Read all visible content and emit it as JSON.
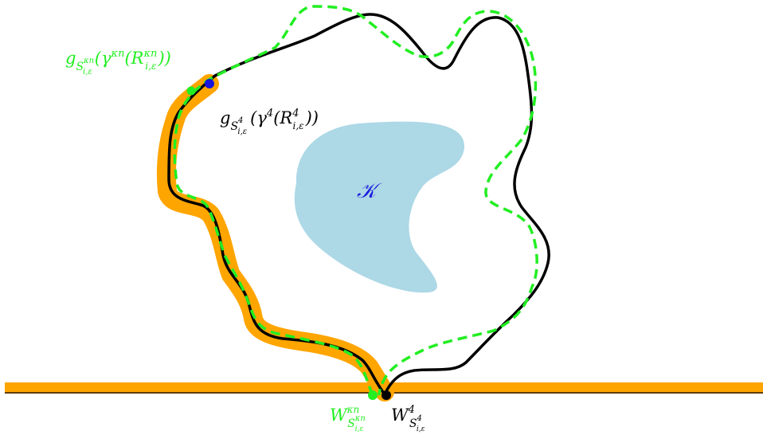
{
  "colors": {
    "background": "#ffffff",
    "orange_band": "#FFA500",
    "black_curve": "#000000",
    "green_dashed": "#22EE22",
    "compact_set_fill": "#ADD8E6",
    "compact_set_label": "#1A1ADD",
    "blue_point": "#1515DD"
  },
  "labels": {
    "K": "𝒦",
    "green_top_label": {
      "base": "g",
      "sub": "S",
      "subsup": "κn",
      "subsub": "i,ε",
      "expr_open": "(γ",
      "expr_sup": "κn",
      "expr_mid": "(R",
      "expr_R_sup": "κn",
      "expr_R_sub": "i,ε",
      "expr_close": "))"
    },
    "black_top_label": {
      "base": "g",
      "sub": "S",
      "subsup": "4",
      "subsub": "i,ε",
      "expr_open": "(γ",
      "expr_sup": "4",
      "expr_mid": "(R",
      "expr_R_sup": "4",
      "expr_R_sub": "i,ε",
      "expr_close": "))"
    },
    "green_bottom_label": {
      "base": "W",
      "sup": "κn",
      "sub": "S",
      "subsup": "κn",
      "subsub": "i,ε"
    },
    "black_bottom_label": {
      "base": "W",
      "sup": "4",
      "sub": "S",
      "subsup": "4",
      "subsub": "i,ε"
    }
  }
}
